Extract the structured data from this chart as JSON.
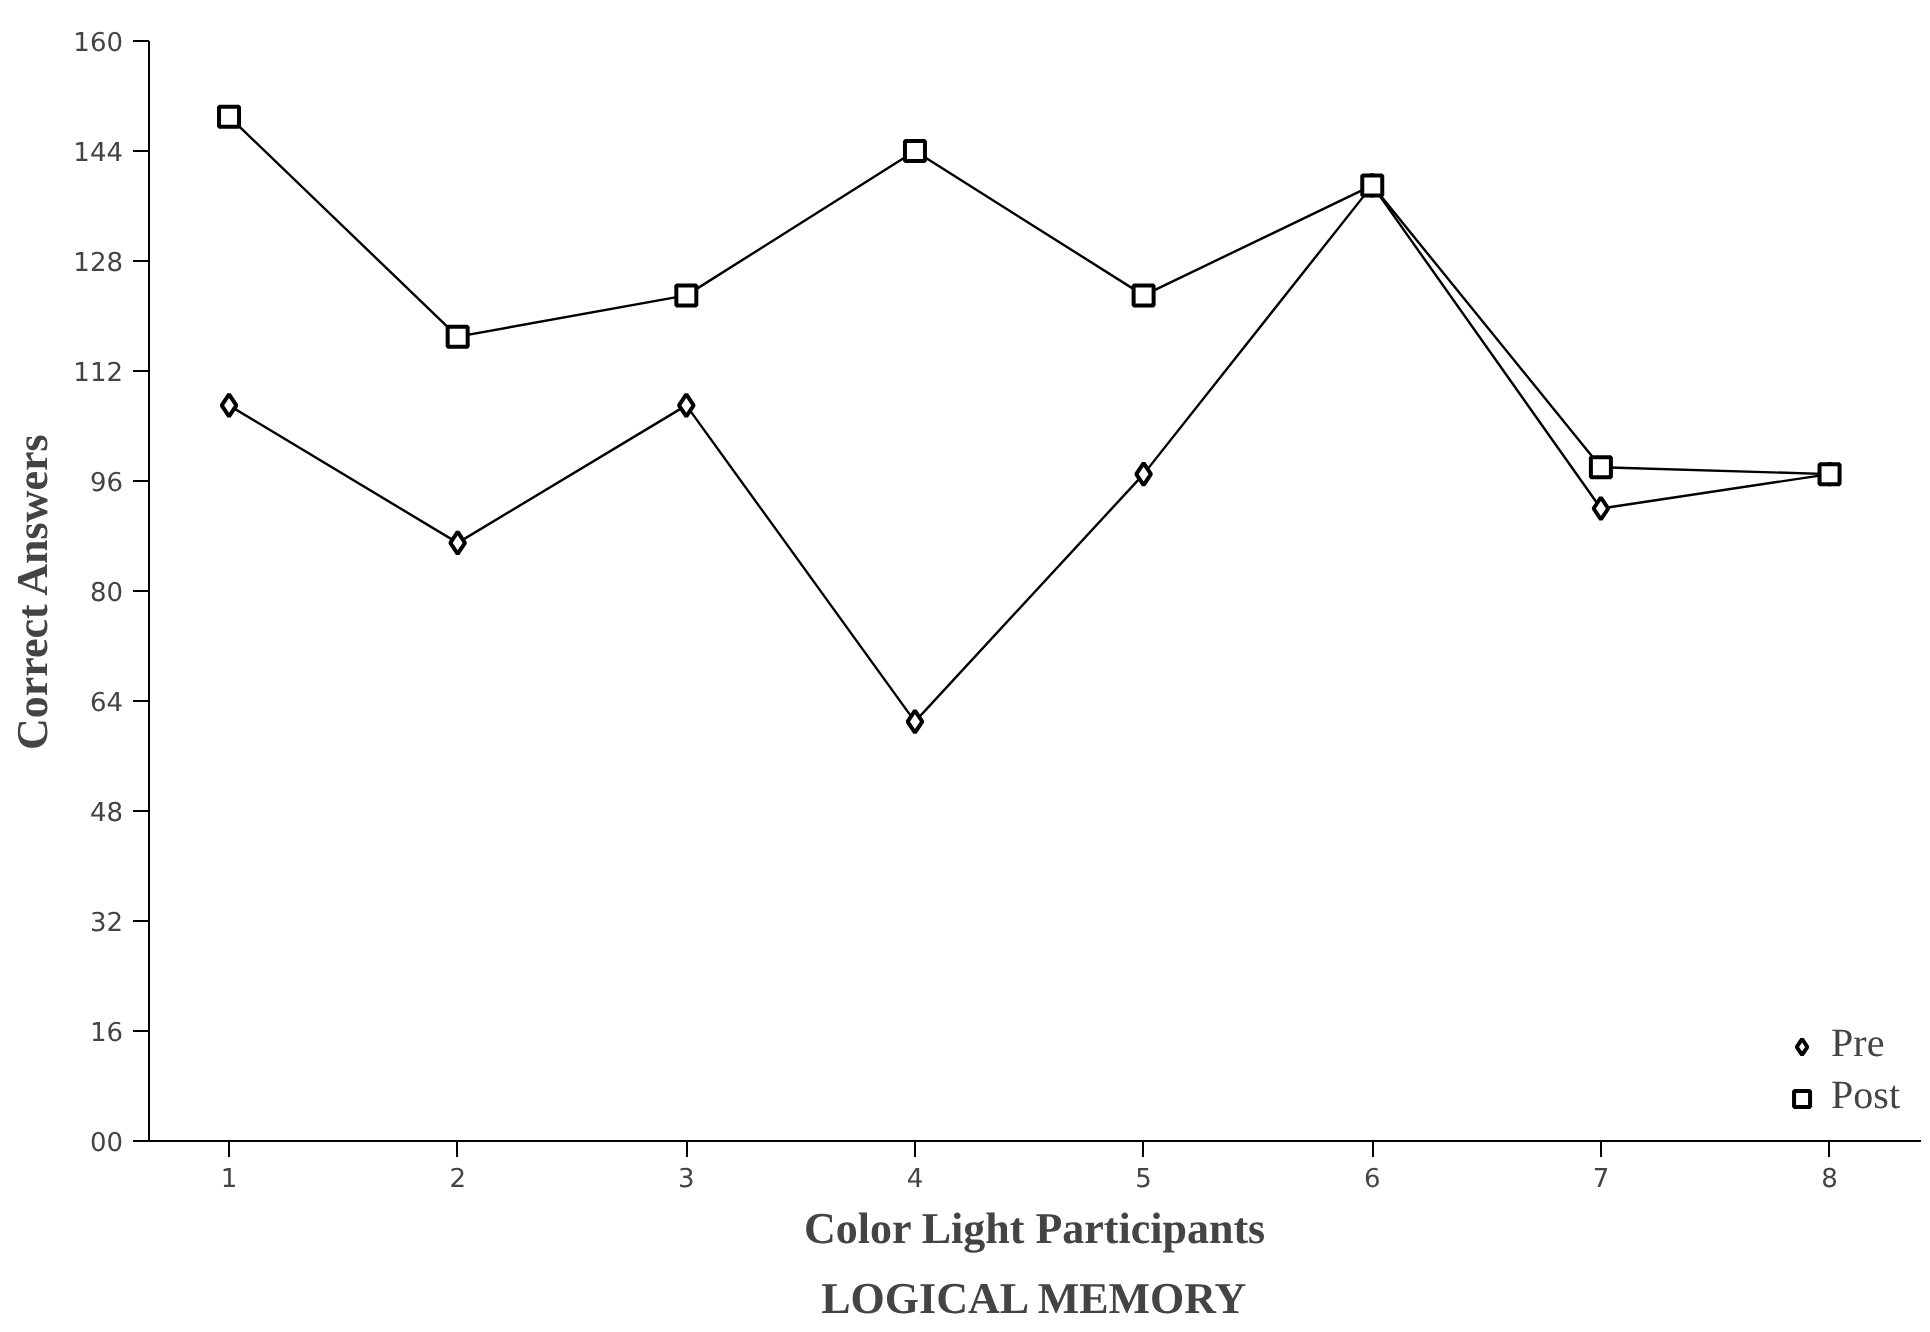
{
  "chart_data": {
    "type": "line",
    "title": "LOGICAL MEMORY",
    "xlabel": "Color Light Participants",
    "ylabel": "Correct Answers",
    "x": [
      1,
      2,
      3,
      4,
      5,
      6,
      7,
      8
    ],
    "series": [
      {
        "name": "Pre",
        "color": "#000000",
        "marker": "diamond",
        "values": [
          107,
          87,
          107,
          61,
          97,
          139,
          92,
          97
        ]
      },
      {
        "name": "Post",
        "color": "#000000",
        "marker": "square",
        "values": [
          149,
          117,
          123,
          144,
          123,
          139,
          98,
          97
        ]
      }
    ],
    "xlim": [
      0.65,
      8.4
    ],
    "xticks": [
      1,
      2,
      3,
      4,
      5,
      6,
      7,
      8
    ],
    "ylim": [
      0,
      160
    ],
    "yticks": [
      {
        "value": 0,
        "label": "00"
      },
      16,
      32,
      48,
      64,
      80,
      96,
      112,
      128,
      144,
      160
    ],
    "grid": false,
    "legend": "bottom right",
    "line_style": "solid"
  }
}
